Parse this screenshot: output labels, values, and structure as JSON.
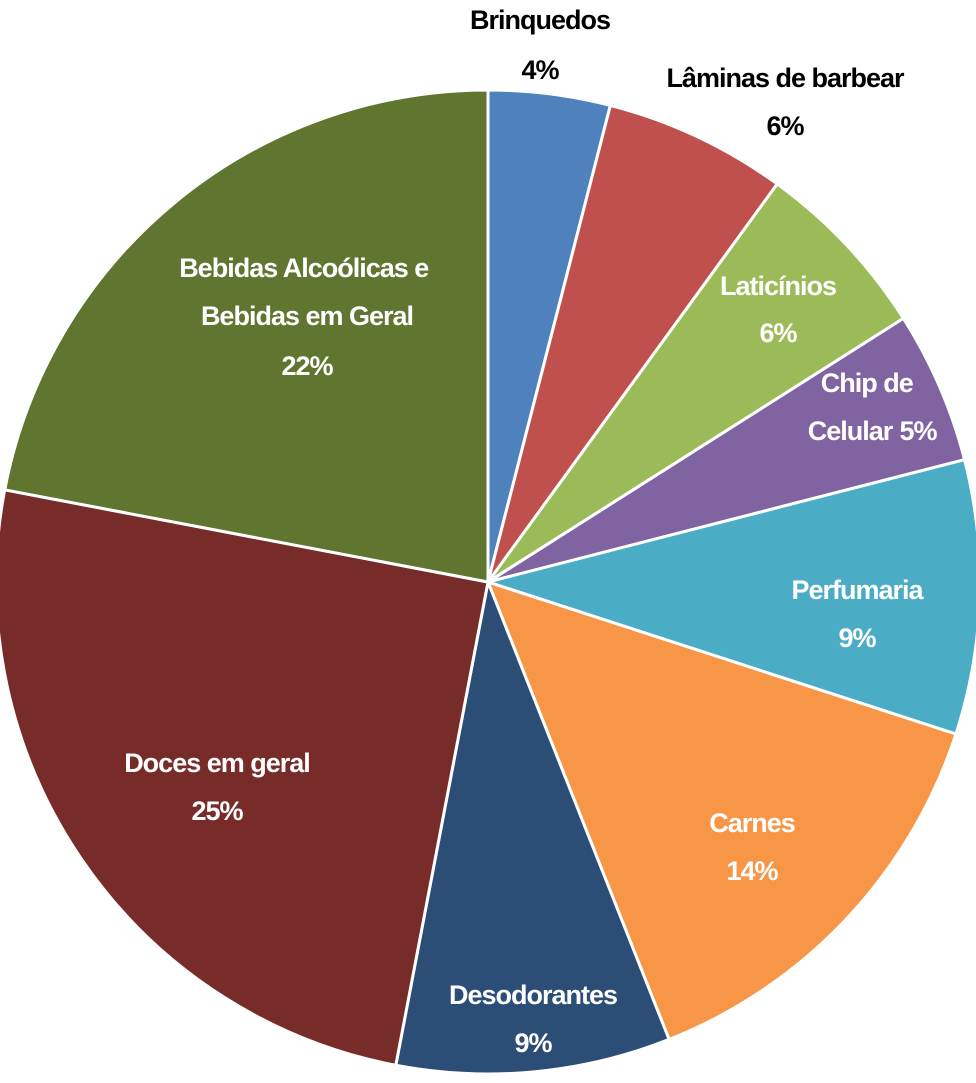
{
  "chart_data": {
    "type": "pie",
    "categories": [
      "Brinquedos",
      "Lâminas de barbear",
      "Laticínios",
      "Chip de Celular",
      "Perfumaria",
      "Carnes",
      "Desodorantes",
      "Doces em geral",
      "Bebidas Alcoólicas e Bebidas em Geral"
    ],
    "values": [
      4,
      6,
      6,
      5,
      9,
      14,
      9,
      25,
      22
    ],
    "value_labels": [
      "4%",
      "6%",
      "6%",
      "5%",
      "9%",
      "14%",
      "9%",
      "25%",
      "22%"
    ],
    "colors": [
      "#4f81bd",
      "#c0504d",
      "#9bbb59",
      "#8064a2",
      "#4bacc6",
      "#f79646",
      "#2c4d75",
      "#772c2a",
      "#5f7530"
    ]
  }
}
